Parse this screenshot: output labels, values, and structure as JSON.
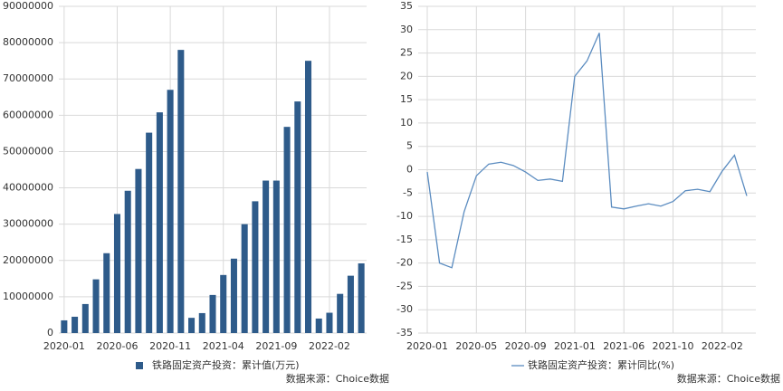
{
  "chart_data": [
    {
      "type": "bar",
      "categories": [
        "2020-01",
        null,
        null,
        null,
        null,
        "2020-06",
        null,
        null,
        null,
        null,
        "2020-11",
        null,
        null,
        null,
        null,
        "2021-04",
        null,
        null,
        null,
        null,
        "2021-09",
        null,
        null,
        null,
        null,
        "2022-02",
        null,
        null,
        null
      ],
      "series": [
        {
          "name": "铁路固定资产投资：累计值(万元)",
          "color": "#2e5b8a",
          "values": [
            3500000,
            4500000,
            8000000,
            14800000,
            22000000,
            32800000,
            39200000,
            45200000,
            55200000,
            60800000,
            67000000,
            78000000,
            4200000,
            5500000,
            10500000,
            16000000,
            20500000,
            30000000,
            36300000,
            42000000,
            42000000,
            56800000,
            63800000,
            75000000,
            4000000,
            5600000,
            10800000,
            15800000,
            19200000
          ]
        }
      ],
      "ylim": [
        0,
        90000000
      ],
      "yticks": [
        0,
        10000000,
        20000000,
        30000000,
        40000000,
        50000000,
        60000000,
        70000000,
        80000000,
        90000000
      ],
      "grid": true,
      "source": "数据来源：Choice数据"
    },
    {
      "type": "line",
      "categories": [
        "2020-01",
        null,
        null,
        null,
        "2020-05",
        null,
        null,
        null,
        "2020-09",
        null,
        null,
        null,
        "2021-01",
        null,
        null,
        null,
        "2021-06",
        null,
        null,
        null,
        "2021-10",
        null,
        null,
        null,
        "2022-02",
        null,
        null
      ],
      "series": [
        {
          "name": "铁路固定资产投资：累计同比(%)",
          "color": "#5b8cc0",
          "values": [
            -0.5,
            -20,
            -21,
            -9,
            -1.3,
            1.2,
            1.6,
            0.9,
            -0.5,
            -2.3,
            -2.0,
            -2.5,
            20,
            23.3,
            29.3,
            -8,
            -8.4,
            -7.8,
            -7.3,
            -7.8,
            -6.8,
            -4.5,
            -4.2,
            -4.7,
            -0.3,
            3.1,
            -5.6
          ]
        }
      ],
      "ylim": [
        -35,
        35
      ],
      "yticks": [
        -35,
        -30,
        -25,
        -20,
        -15,
        -10,
        -5,
        0,
        5,
        10,
        15,
        20,
        25,
        30,
        35
      ],
      "grid": true,
      "source": "数据来源：Choice数据"
    }
  ]
}
